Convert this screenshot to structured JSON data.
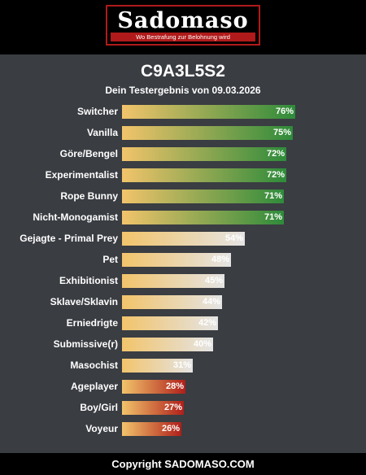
{
  "header": {
    "logo_text": "Sadomaso",
    "logo_tagline": "Wo Bestrafung zur Belohnung wird"
  },
  "result": {
    "code": "C9A3L5S2",
    "subtitle": "Dein Testergebnis von 09.03.2026"
  },
  "colors": {
    "bar_start": "#f2c46b",
    "green_end": "#2e8b3a",
    "light_end": "#e4e4e4",
    "red_end": "#b01f1a",
    "accent": "#b01a1a"
  },
  "chart_data": {
    "type": "bar",
    "orientation": "horizontal",
    "categories": [
      "Switcher",
      "Vanilla",
      "Göre/Bengel",
      "Experimentalist",
      "Rope Bunny",
      "Nicht-Monogamist",
      "Gejagte - Primal Prey",
      "Pet",
      "Exhibitionist",
      "Sklave/Sklavin",
      "Erniedrigte",
      "Submissive(r)",
      "Masochist",
      "Ageplayer",
      "Boy/Girl",
      "Voyeur"
    ],
    "values": [
      76,
      75,
      72,
      72,
      71,
      71,
      54,
      48,
      45,
      44,
      42,
      40,
      31,
      28,
      27,
      26
    ],
    "value_labels": [
      "76%",
      "75%",
      "72%",
      "72%",
      "71%",
      "71%",
      "54%",
      "48%",
      "45%",
      "44%",
      "42%",
      "40%",
      "31%",
      "28%",
      "27%",
      "26%"
    ],
    "xlim": [
      0,
      100
    ],
    "grid": false,
    "legend": "none"
  },
  "footer": {
    "copyright": "Copyright SADOMASO.COM"
  }
}
